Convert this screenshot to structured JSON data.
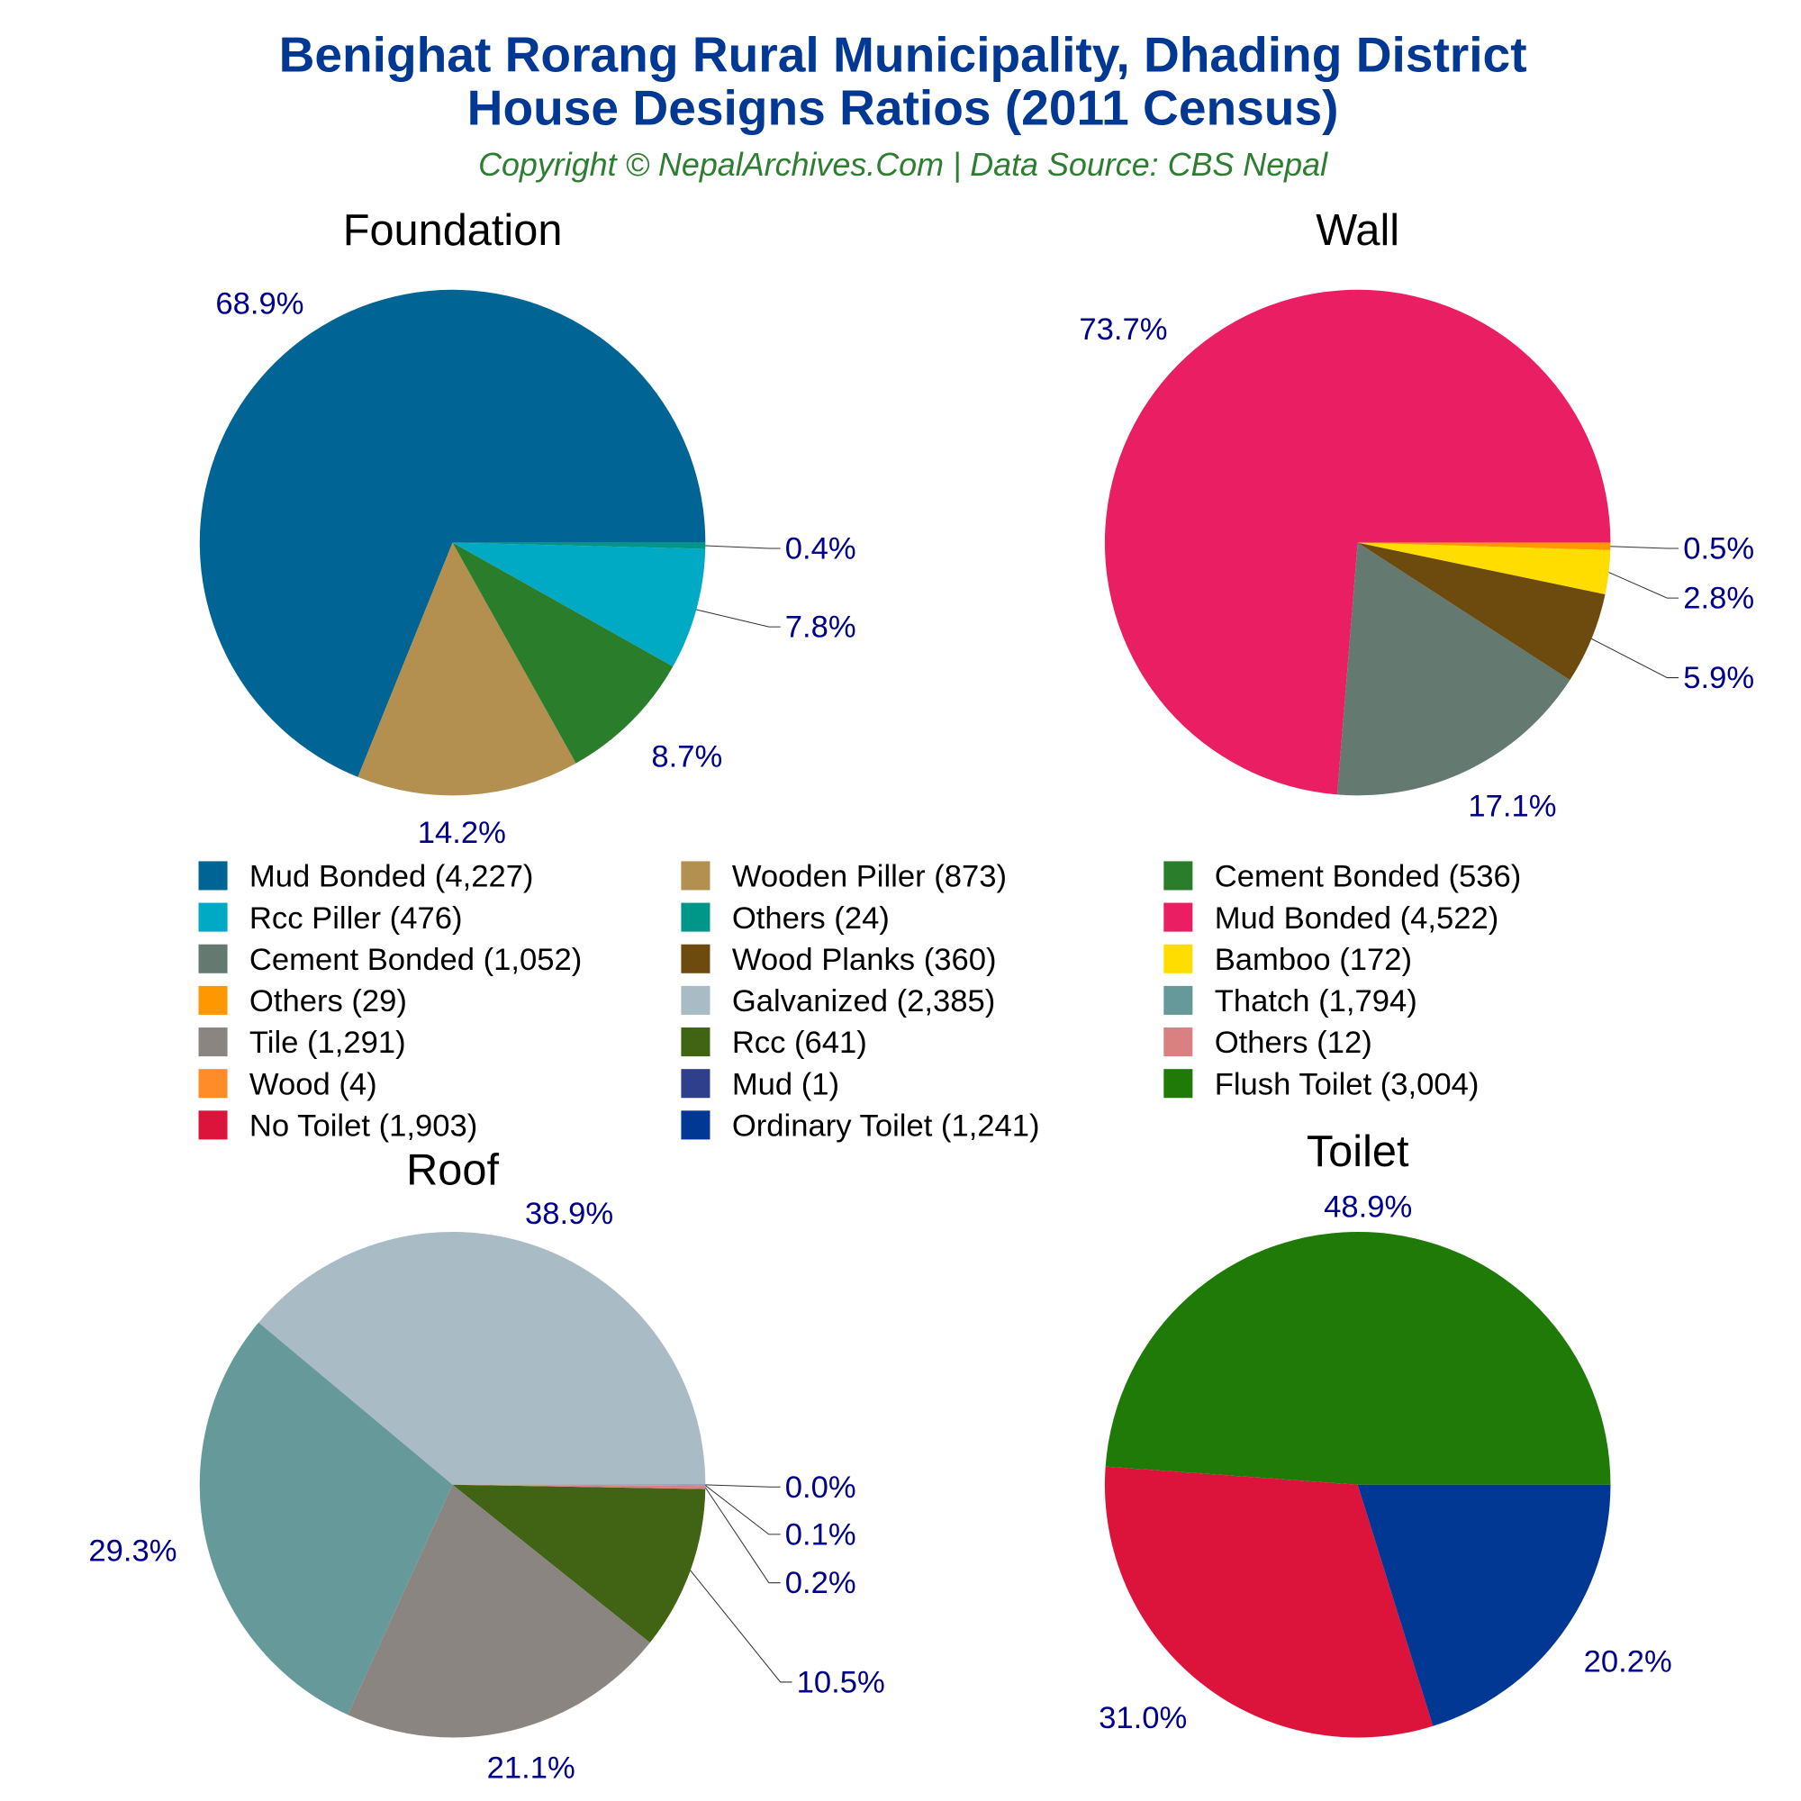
{
  "title_line1": "Benighat Rorang Rural Municipality, Dhading District",
  "title_line2": "House Designs Ratios (2011 Census)",
  "subtitle": "Copyright © NepalArchives.Com | Data Source: CBS Nepal",
  "colors": {
    "title": "#003893",
    "subtitle": "#2E7D32",
    "labels": "#00008B"
  },
  "chart_data": [
    {
      "type": "pie",
      "title": "Foundation",
      "slices": [
        {
          "name": "Mud Bonded",
          "value": 4227,
          "label": "68.9%",
          "color": "#006495"
        },
        {
          "name": "Wooden Piller",
          "value": 873,
          "label": "14.2%",
          "color": "#B38F50"
        },
        {
          "name": "Cement Bonded",
          "value": 536,
          "label": "8.7%",
          "color": "#2A7D2A"
        },
        {
          "name": "Rcc Piller",
          "value": 476,
          "label": "7.8%",
          "color": "#00AAC4"
        },
        {
          "name": "Others",
          "value": 24,
          "label": "0.4%",
          "color": "#009688"
        }
      ]
    },
    {
      "type": "pie",
      "title": "Wall",
      "slices": [
        {
          "name": "Mud Bonded",
          "value": 4522,
          "label": "73.7%",
          "color": "#E91E63"
        },
        {
          "name": "Cement Bonded",
          "value": 1052,
          "label": "17.1%",
          "color": "#647A70"
        },
        {
          "name": "Wood Planks",
          "value": 360,
          "label": "5.9%",
          "color": "#6D4A0D"
        },
        {
          "name": "Bamboo",
          "value": 172,
          "label": "2.8%",
          "color": "#FFDD00"
        },
        {
          "name": "Others",
          "value": 29,
          "label": "0.5%",
          "color": "#FF9800"
        }
      ]
    },
    {
      "type": "pie",
      "title": "Roof",
      "slices": [
        {
          "name": "Galvanized",
          "value": 2385,
          "label": "38.9%",
          "color": "#A9BBC4"
        },
        {
          "name": "Thatch",
          "value": 1794,
          "label": "29.3%",
          "color": "#669999"
        },
        {
          "name": "Tile",
          "value": 1291,
          "label": "21.1%",
          "color": "#8A8581"
        },
        {
          "name": "Rcc",
          "value": 641,
          "label": "10.5%",
          "color": "#406413"
        },
        {
          "name": "Others",
          "value": 12,
          "label": "0.2%",
          "color": "#D98080"
        },
        {
          "name": "Wood",
          "value": 4,
          "label": "0.1%",
          "color": "#FF8C28"
        },
        {
          "name": "Mud",
          "value": 1,
          "label": "0.0%",
          "color": "#303F8C"
        }
      ]
    },
    {
      "type": "pie",
      "title": "Toilet",
      "slices": [
        {
          "name": "Flush Toilet",
          "value": 3004,
          "label": "48.9%",
          "color": "#1F7A08"
        },
        {
          "name": "No Toilet",
          "value": 1903,
          "label": "31.0%",
          "color": "#DC143C"
        },
        {
          "name": "Ordinary Toilet",
          "value": 1241,
          "label": "20.2%",
          "color": "#003893"
        }
      ]
    }
  ],
  "legend": [
    {
      "text": "Mud Bonded (4,227)",
      "color": "#006495"
    },
    {
      "text": "Wooden Piller (873)",
      "color": "#B38F50"
    },
    {
      "text": "Cement Bonded (536)",
      "color": "#2A7D2A"
    },
    {
      "text": "Rcc Piller (476)",
      "color": "#00AAC4"
    },
    {
      "text": "Others (24)",
      "color": "#009688"
    },
    {
      "text": "Mud Bonded (4,522)",
      "color": "#E91E63"
    },
    {
      "text": "Cement Bonded (1,052)",
      "color": "#647A70"
    },
    {
      "text": "Wood Planks (360)",
      "color": "#6D4A0D"
    },
    {
      "text": "Bamboo (172)",
      "color": "#FFDD00"
    },
    {
      "text": "Others (29)",
      "color": "#FF9800"
    },
    {
      "text": "Galvanized (2,385)",
      "color": "#A9BBC4"
    },
    {
      "text": "Thatch (1,794)",
      "color": "#669999"
    },
    {
      "text": "Tile (1,291)",
      "color": "#8A8581"
    },
    {
      "text": "Rcc (641)",
      "color": "#406413"
    },
    {
      "text": "Others (12)",
      "color": "#D98080"
    },
    {
      "text": "Wood (4)",
      "color": "#FF8C28"
    },
    {
      "text": "Mud (1)",
      "color": "#303F8C"
    },
    {
      "text": "Flush Toilet (3,004)",
      "color": "#1F7A08"
    },
    {
      "text": "No Toilet (1,903)",
      "color": "#DC143C"
    },
    {
      "text": "Ordinary Toilet (1,241)",
      "color": "#003893"
    }
  ]
}
